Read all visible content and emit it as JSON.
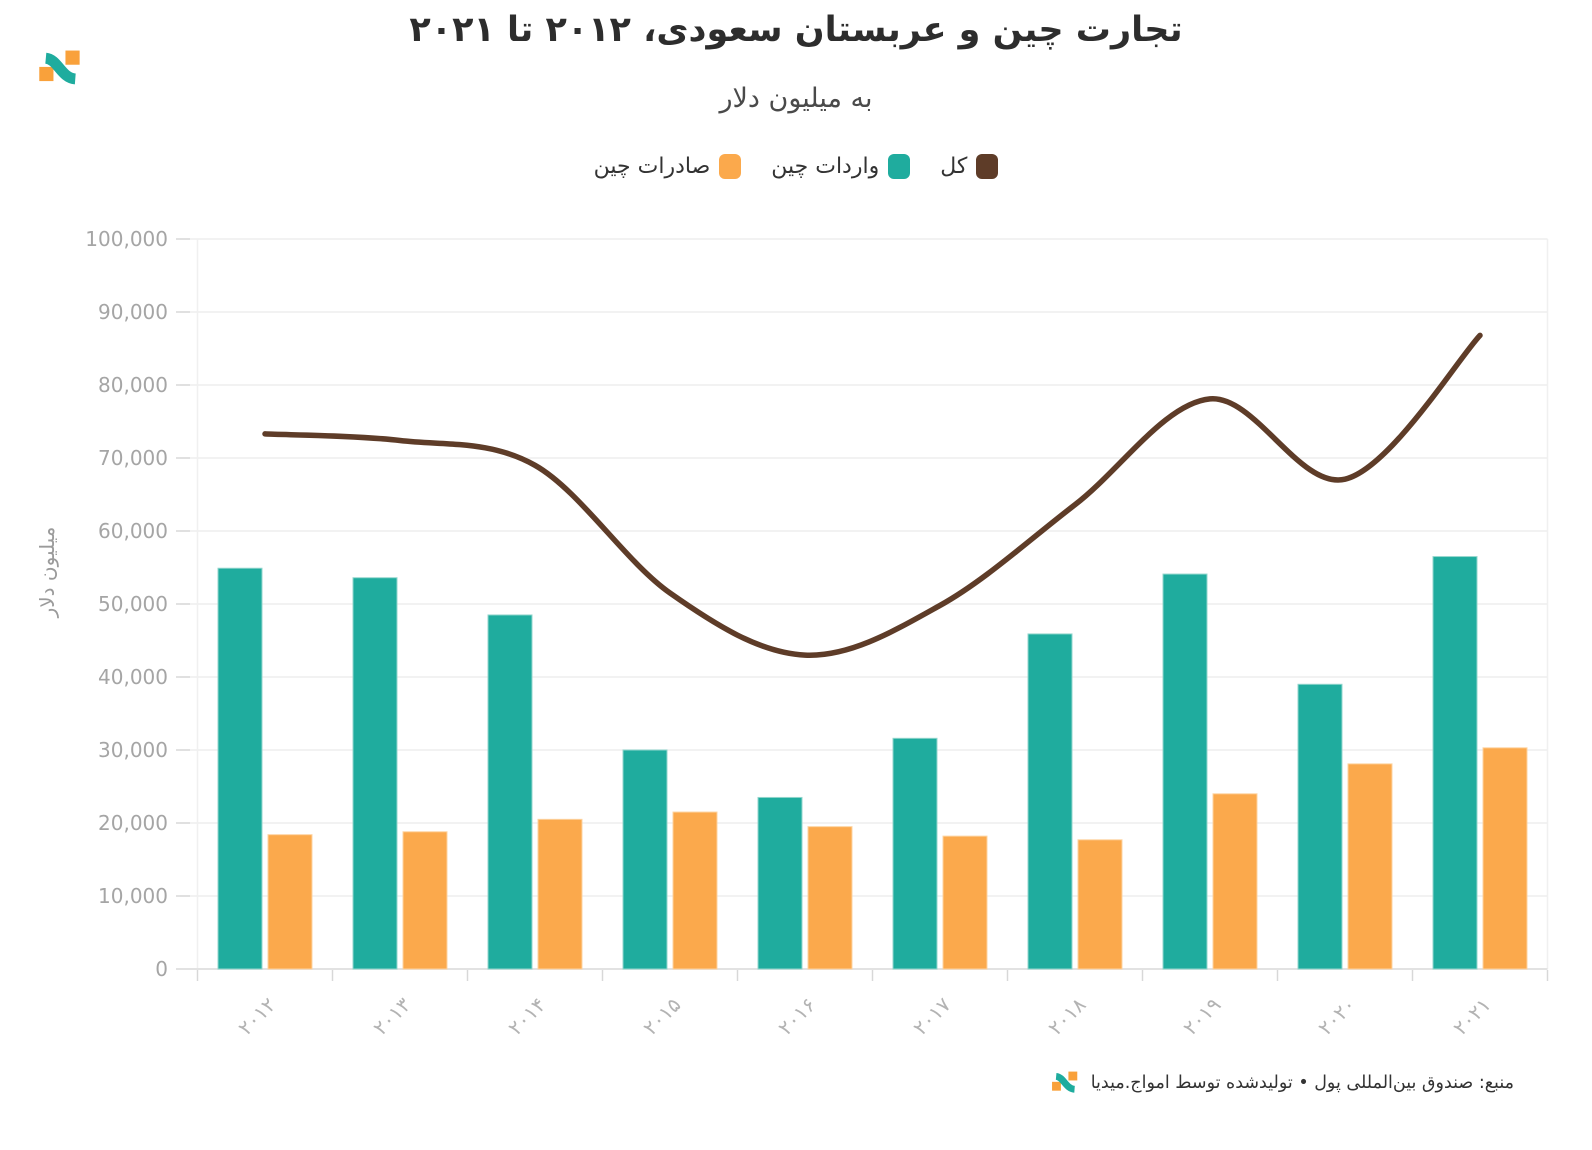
{
  "footer": {
    "text": "منبع: صندوق بین‌المللی پول • تولیدشده توسط امواج.میدیا"
  },
  "legend": [
    {
      "label": "کل",
      "color": "#5E3C28"
    },
    {
      "label": "واردات چین",
      "color": "#1FAC9E"
    },
    {
      "label": "صادرات چین",
      "color": "#FBA94C"
    }
  ],
  "brand": {
    "logo_orange": "#F9A13B",
    "logo_teal": "#1FAC9E"
  },
  "chart_data": {
    "type": "bar",
    "title": "تجارت چین و عربستان سعودی، ۲۰۱۲ تا ۲۰۲۱",
    "subtitle": "به میلیون دلار",
    "categories": [
      "۲۰۱۲",
      "۲۰۱۳",
      "۲۰۱۴",
      "۲۰۱۵",
      "۲۰۱۶",
      "۲۰۱۷",
      "۲۰۱۸",
      "۲۰۱۹",
      "۲۰۲۰",
      "۲۰۲۱"
    ],
    "series": [
      {
        "name": "واردات چین",
        "type": "bar",
        "color": "#1FAC9E",
        "border": "#93D6CD",
        "values": [
          54900,
          53600,
          48500,
          30000,
          23500,
          31600,
          45900,
          54100,
          39000,
          56500
        ]
      },
      {
        "name": "صادرات چین",
        "type": "bar",
        "color": "#FBA94C",
        "border": "#FDD3A0",
        "values": [
          18400,
          18800,
          20500,
          21500,
          19500,
          18200,
          17700,
          24000,
          28100,
          30300
        ]
      },
      {
        "name": "کل",
        "type": "spline",
        "color": "#5E3C28",
        "values": [
          73300,
          72400,
          69000,
          51500,
          43000,
          49800,
          63600,
          78100,
          67100,
          86800
        ]
      }
    ],
    "xlabel": "",
    "ylabel": "میلیون دلار",
    "ylim": [
      0,
      100000
    ],
    "ytick_step": 10000,
    "ytick_labels": [
      "0",
      "10,000",
      "20,000",
      "30,000",
      "40,000",
      "50,000",
      "60,000",
      "70,000",
      "80,000",
      "90,000",
      "100,000"
    ],
    "grid": true,
    "legend_position": "top"
  }
}
